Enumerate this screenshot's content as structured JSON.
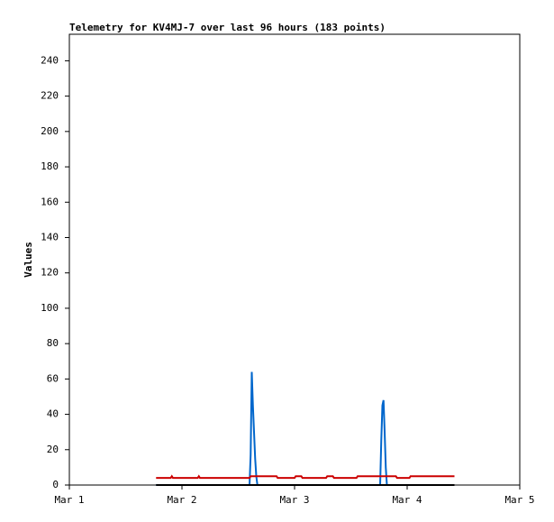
{
  "chart_data": {
    "type": "line",
    "title": "Telemetry for KV4MJ-7 over last 96 hours (183 points)",
    "y_label": "Values",
    "xlim": [
      0,
      4
    ],
    "xticks": [
      {
        "value": 0,
        "label": "Mar 1"
      },
      {
        "value": 1,
        "label": "Mar 2"
      },
      {
        "value": 2,
        "label": "Mar 3"
      },
      {
        "value": 3,
        "label": "Mar 4"
      },
      {
        "value": 4,
        "label": "Mar 5"
      }
    ],
    "ylim": [
      0,
      255
    ],
    "yticks": [
      0,
      20,
      40,
      60,
      80,
      100,
      120,
      140,
      160,
      180,
      200,
      220,
      240
    ],
    "grid": false,
    "series": [
      {
        "color": "#0066cc",
        "x": [
          0.77,
          1.6,
          1.61,
          1.62,
          1.63,
          1.64,
          1.65,
          1.66,
          1.67,
          2.76,
          2.77,
          2.78,
          2.79,
          2.8,
          2.81,
          2.82,
          3.42
        ],
        "values": [
          0,
          0,
          17,
          64,
          45,
          30,
          15,
          5,
          0,
          0,
          25,
          45,
          48,
          30,
          10,
          0,
          0
        ]
      },
      {
        "color": "#cc0000",
        "x": [
          0.77,
          0.9,
          0.91,
          0.92,
          1.14,
          1.15,
          1.16,
          1.6,
          1.61,
          1.84,
          1.85,
          2.0,
          2.01,
          2.06,
          2.07,
          2.28,
          2.29,
          2.34,
          2.35,
          2.55,
          2.56,
          2.9,
          2.91,
          3.02,
          3.03,
          3.42
        ],
        "values": [
          4,
          4,
          5,
          4,
          4,
          5,
          4,
          4,
          5,
          5,
          4,
          4,
          5,
          5,
          4,
          4,
          5,
          5,
          4,
          4,
          5,
          5,
          4,
          4,
          5,
          5
        ]
      },
      {
        "color": "#000000",
        "x": [
          0.77,
          3.42
        ],
        "values": [
          0,
          0
        ]
      }
    ]
  }
}
